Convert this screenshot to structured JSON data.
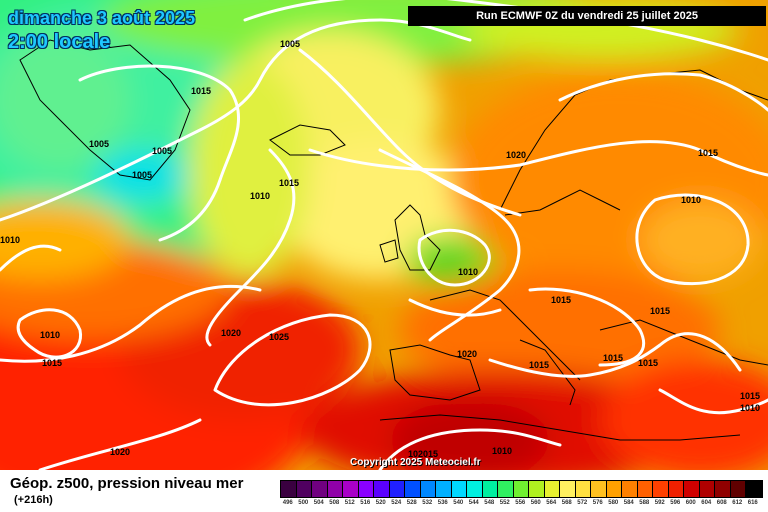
{
  "header": {
    "date": "dimanche 3 août 2025",
    "time": "2:00 locale",
    "run": "Run ECMWF 0Z du vendredi 25 juillet 2025"
  },
  "copyright": "Copyright 2025 Meteociel.fr",
  "legend": {
    "title": "Géop. z500, pression niveau mer",
    "subtitle": "(+216h)",
    "scale": [
      {
        "label": "496",
        "color": "#3a0040"
      },
      {
        "label": "500",
        "color": "#500060"
      },
      {
        "label": "504",
        "color": "#700080"
      },
      {
        "label": "508",
        "color": "#9000a8"
      },
      {
        "label": "512",
        "color": "#a800c8"
      },
      {
        "label": "516",
        "color": "#8a00ff"
      },
      {
        "label": "520",
        "color": "#5a00ff"
      },
      {
        "label": "524",
        "color": "#2020ff"
      },
      {
        "label": "528",
        "color": "#0050ff"
      },
      {
        "label": "532",
        "color": "#0088ff"
      },
      {
        "label": "536",
        "color": "#00b0ff"
      },
      {
        "label": "540",
        "color": "#00d8ff"
      },
      {
        "label": "544",
        "color": "#00f0e0"
      },
      {
        "label": "548",
        "color": "#00f0a0"
      },
      {
        "label": "552",
        "color": "#30f060"
      },
      {
        "label": "556",
        "color": "#70f030"
      },
      {
        "label": "560",
        "color": "#b0f020"
      },
      {
        "label": "564",
        "color": "#e8f030"
      },
      {
        "label": "568",
        "color": "#fff060"
      },
      {
        "label": "572",
        "color": "#ffe040"
      },
      {
        "label": "576",
        "color": "#ffc020"
      },
      {
        "label": "580",
        "color": "#ffa000"
      },
      {
        "label": "584",
        "color": "#ff8000"
      },
      {
        "label": "588",
        "color": "#ff6000"
      },
      {
        "label": "592",
        "color": "#ff4000"
      },
      {
        "label": "596",
        "color": "#f02000"
      },
      {
        "label": "600",
        "color": "#d00000"
      },
      {
        "label": "604",
        "color": "#b00000"
      },
      {
        "label": "608",
        "color": "#900000"
      },
      {
        "label": "612",
        "color": "#600000"
      },
      {
        "label": "616",
        "color": "#000000"
      }
    ]
  },
  "pressure_labels": [
    "1005",
    "1015",
    "1005",
    "1005",
    "1005",
    "1015",
    "1010",
    "1020",
    "1015",
    "1010",
    "1010",
    "1010",
    "1015",
    "1020",
    "1025",
    "1015",
    "1010",
    "1020",
    "1015",
    "1015",
    "1015",
    "1015",
    "1015",
    "1010",
    "1010",
    "1020",
    "102015",
    "1010"
  ]
}
